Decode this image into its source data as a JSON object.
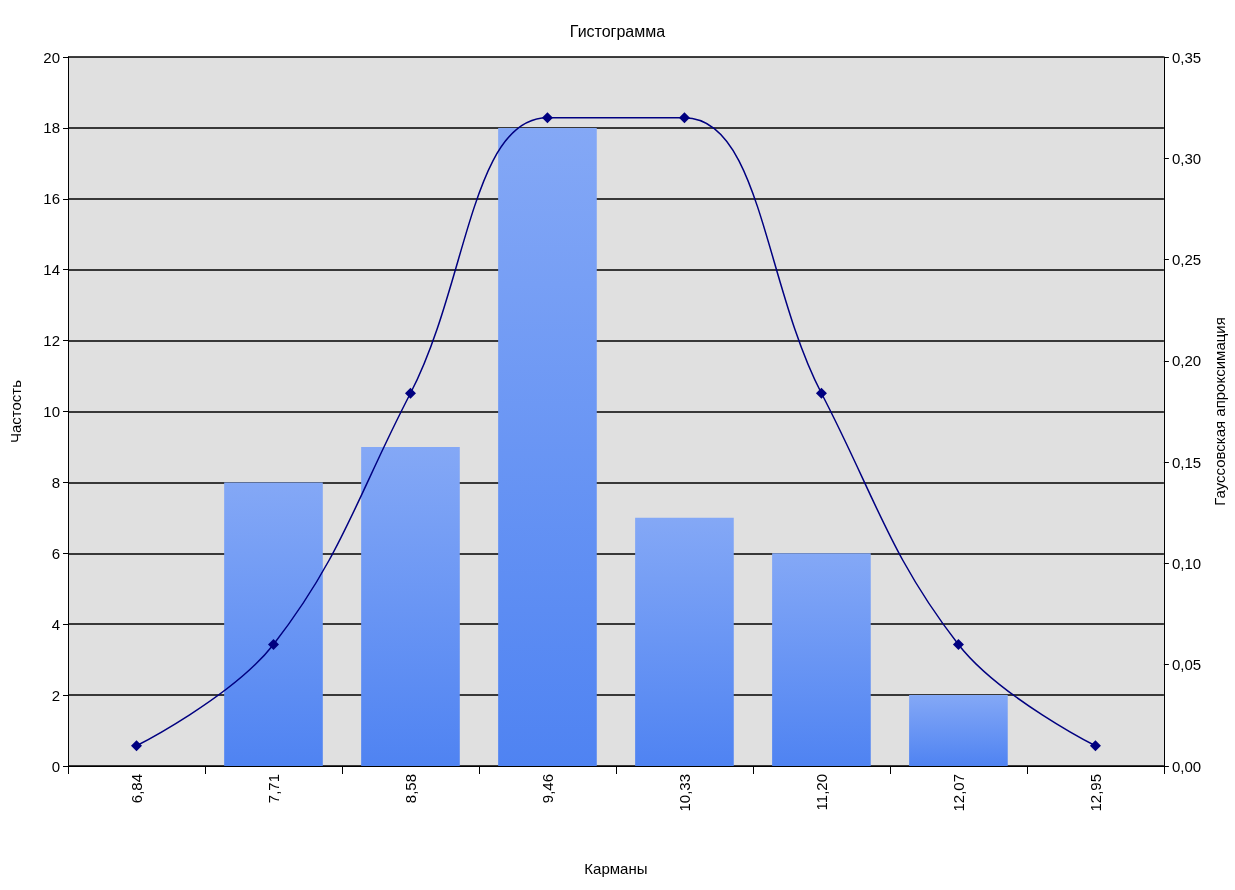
{
  "chart_data": {
    "type": "bar",
    "title": "Гистограмма",
    "xlabel": "Карманы",
    "ylabel": "Частость",
    "y2label": "Гауссовская апроксимация",
    "categories": [
      "6,84",
      "7,71",
      "8,58",
      "9,46",
      "10,33",
      "11,20",
      "12,07",
      "12,95"
    ],
    "series": [
      {
        "color": "#4f83f2",
        "values": [
          0,
          8,
          9,
          18,
          7,
          6,
          2,
          0
        ]
      },
      {
        "type": "line",
        "axis": "y2",
        "color": "#000080",
        "marker": "diamond",
        "values": [
          0.01,
          0.06,
          0.184,
          0.32,
          0.32,
          0.184,
          0.06,
          0.01
        ]
      }
    ],
    "ylim": [
      0,
      20
    ],
    "yticks": [
      0,
      2,
      4,
      6,
      8,
      10,
      12,
      14,
      16,
      18,
      20
    ],
    "y2lim": [
      0,
      0.35
    ],
    "y2ticks": [
      {
        "value": 0,
        "label": "0,00"
      },
      {
        "value": 0.05,
        "label": "0,05"
      },
      {
        "value": 0.1,
        "label": "0,10"
      },
      {
        "value": 0.15,
        "label": "0,15"
      },
      {
        "value": 0.2,
        "label": "0,20"
      },
      {
        "value": 0.25,
        "label": "0,25"
      },
      {
        "value": 0.3,
        "label": "0,30"
      },
      {
        "value": 0.35,
        "label": "0,35"
      }
    ],
    "grid": "y"
  }
}
